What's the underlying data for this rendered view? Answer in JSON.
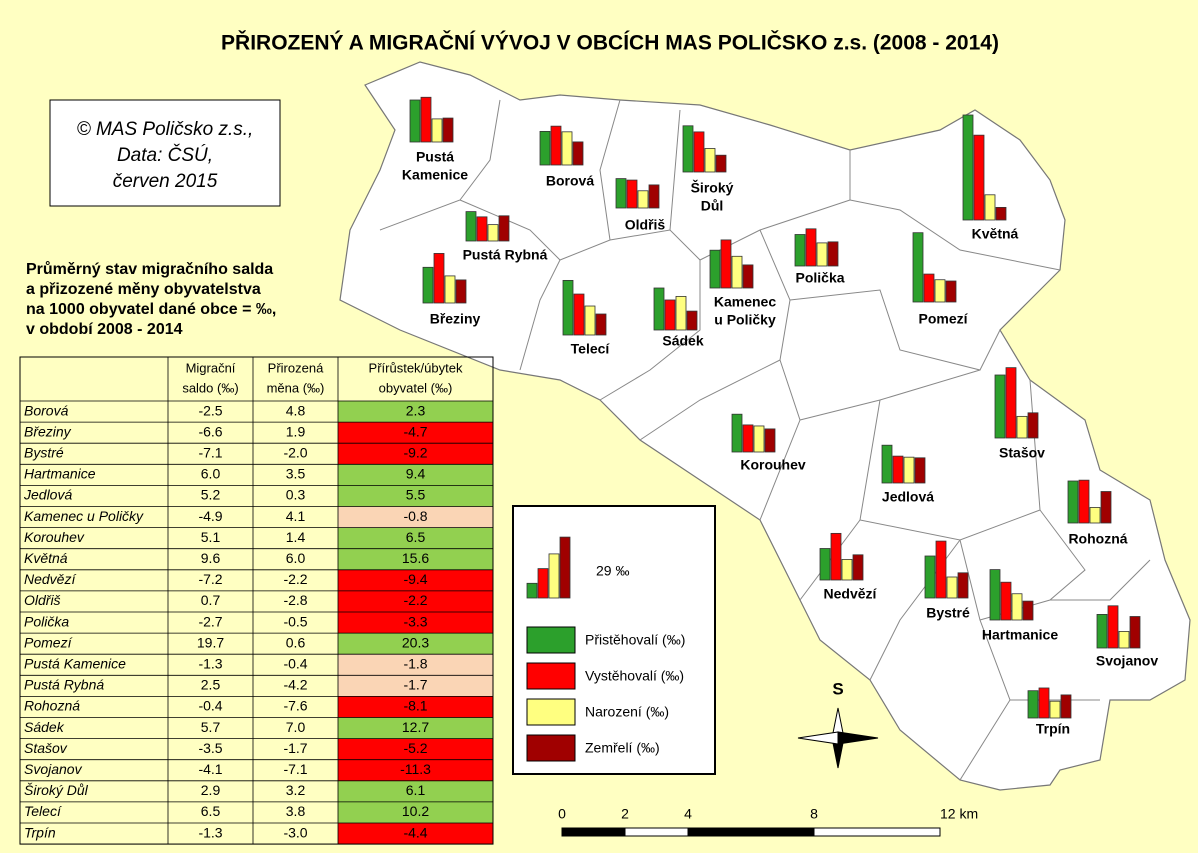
{
  "title": "PŘIROZENÝ A MIGRAČNÍ VÝVOJ V OBCÍCH MAS POLIČSKO z.s. (2008 - 2014)",
  "credit": [
    "© MAS Poličsko z.s.,",
    "Data: ČSÚ,",
    "červen 2015"
  ],
  "subtitle": [
    "Průměrný stav migračního salda",
    "a přizozené měny obyvatelstva",
    "na 1000 obyvatel dané obce = ‰,",
    "v období 2008 - 2014"
  ],
  "table": {
    "headers": [
      [],
      [
        "Migrační",
        "saldo (‰)"
      ],
      [
        "Přirozená",
        "měna (‰)"
      ],
      [
        "Přírůstek/úbytek",
        "obyvatel (‰)"
      ]
    ],
    "rows": [
      {
        "cells": [
          "Borová",
          "-2.5",
          "4.8",
          "2.3"
        ],
        "color": "#92d050"
      },
      {
        "cells": [
          "Březiny",
          "-6.6",
          "1.9",
          "-4.7"
        ],
        "color": "#ff0000"
      },
      {
        "cells": [
          "Bystré",
          "-7.1",
          "-2.0",
          "-9.2"
        ],
        "color": "#ff0000"
      },
      {
        "cells": [
          "Hartmanice",
          "6.0",
          "3.5",
          "9.4"
        ],
        "color": "#92d050"
      },
      {
        "cells": [
          "Jedlová",
          "5.2",
          "0.3",
          "5.5"
        ],
        "color": "#92d050"
      },
      {
        "cells": [
          "Kamenec u Poličky",
          "-4.9",
          "4.1",
          "-0.8"
        ],
        "color": "#fad5b5"
      },
      {
        "cells": [
          "Korouhev",
          "5.1",
          "1.4",
          "6.5"
        ],
        "color": "#92d050"
      },
      {
        "cells": [
          "Květná",
          "9.6",
          "6.0",
          "15.6"
        ],
        "color": "#92d050"
      },
      {
        "cells": [
          "Nedvězí",
          "-7.2",
          "-2.2",
          "-9.4"
        ],
        "color": "#ff0000"
      },
      {
        "cells": [
          "Oldřiš",
          "0.7",
          "-2.8",
          "-2.2"
        ],
        "color": "#ff0000"
      },
      {
        "cells": [
          "Polička",
          "-2.7",
          "-0.5",
          "-3.3"
        ],
        "color": "#ff0000"
      },
      {
        "cells": [
          "Pomezí",
          "19.7",
          "0.6",
          "20.3"
        ],
        "color": "#92d050"
      },
      {
        "cells": [
          "Pustá Kamenice",
          "-1.3",
          "-0.4",
          "-1.8"
        ],
        "color": "#fad5b5"
      },
      {
        "cells": [
          "Pustá Rybná",
          "2.5",
          "-4.2",
          "-1.7"
        ],
        "color": "#fad5b5"
      },
      {
        "cells": [
          "Rohozná",
          "-0.4",
          "-7.6",
          "-8.1"
        ],
        "color": "#ff0000"
      },
      {
        "cells": [
          "Sádek",
          "5.7",
          "7.0",
          "12.7"
        ],
        "color": "#92d050"
      },
      {
        "cells": [
          "Stašov",
          "-3.5",
          "-1.7",
          "-5.2"
        ],
        "color": "#ff0000"
      },
      {
        "cells": [
          "Svojanov",
          "-4.1",
          "-7.1",
          "-11.3"
        ],
        "color": "#ff0000"
      },
      {
        "cells": [
          "Široký Důl",
          "2.9",
          "3.2",
          "6.1"
        ],
        "color": "#92d050"
      },
      {
        "cells": [
          "Telecí",
          "6.5",
          "3.8",
          "10.2"
        ],
        "color": "#92d050"
      },
      {
        "cells": [
          "Trpín",
          "-1.3",
          "-3.0",
          "-4.4"
        ],
        "color": "#ff0000"
      }
    ]
  },
  "towns": [
    {
      "label": [
        "Pustá",
        "Kamenice"
      ],
      "values": [
        20,
        21.3,
        11,
        11.4
      ]
    },
    {
      "label": [
        "Borová"
      ],
      "values": [
        16,
        18.5,
        15.8,
        11
      ]
    },
    {
      "label": [
        "Široký",
        "Důl"
      ],
      "values": [
        22,
        19.1,
        11.2,
        8
      ]
    },
    {
      "label": [
        "Oldřiš"
      ],
      "values": [
        14,
        13.3,
        8.2,
        11
      ]
    },
    {
      "label": [
        "Květná"
      ],
      "values": [
        50,
        40.4,
        12,
        6
      ]
    },
    {
      "label": [
        "Pustá Rybná"
      ],
      "values": [
        14,
        11.5,
        7.8,
        12
      ]
    },
    {
      "label": [
        "Polička"
      ],
      "values": [
        15,
        17.7,
        11,
        11.5
      ]
    },
    {
      "label": [
        "Březiny"
      ],
      "values": [
        17,
        23.6,
        12.9,
        11
      ]
    },
    {
      "label": [
        "Pomezí"
      ],
      "values": [
        33,
        13.3,
        10.6,
        10
      ]
    },
    {
      "label": [
        "Kamenec",
        "u Poličky"
      ],
      "values": [
        18,
        22.9,
        15.1,
        11
      ]
    },
    {
      "label": [
        "Telecí"
      ],
      "values": [
        26,
        19.5,
        13.8,
        10
      ]
    },
    {
      "label": [
        "Sádek"
      ],
      "values": [
        20,
        14.3,
        16,
        9
      ]
    },
    {
      "label": [
        "Stašov"
      ],
      "values": [
        30,
        33.5,
        10.3,
        12
      ]
    },
    {
      "label": [
        "Korouhev"
      ],
      "values": [
        18,
        12.9,
        12.4,
        11
      ]
    },
    {
      "label": [
        "Jedlová"
      ],
      "values": [
        18,
        12.8,
        12.3,
        12
      ]
    },
    {
      "label": [
        "Rohozná"
      ],
      "values": [
        20,
        20.4,
        7.4,
        15
      ]
    },
    {
      "label": [
        "Nedvězí"
      ],
      "values": [
        15,
        22.2,
        9.8,
        12
      ]
    },
    {
      "label": [
        "Bystré"
      ],
      "values": [
        20,
        27.1,
        10,
        12
      ]
    },
    {
      "label": [
        "Hartmanice"
      ],
      "values": [
        24,
        18,
        12.5,
        9
      ]
    },
    {
      "label": [
        "Svojanov"
      ],
      "values": [
        16,
        20.1,
        7.9,
        15
      ]
    },
    {
      "label": [
        "Trpín"
      ],
      "values": [
        13,
        14.3,
        8,
        11
      ]
    }
  ],
  "legend": {
    "sample": [
      7,
      14,
      21,
      29
    ],
    "sample_label": "29 ‰",
    "items": [
      {
        "name": "Přistěhovalí (‰)",
        "color": "#2ca02c"
      },
      {
        "name": "Vystěhovalí (‰)",
        "color": "#ff0000"
      },
      {
        "name": "Narození (‰)",
        "color": "#ffff80"
      },
      {
        "name": "Zemřelí (‰)",
        "color": "#a00000"
      }
    ]
  },
  "north": "S",
  "scale": {
    "ticks": [
      0,
      2,
      4,
      8,
      {
        "value": 12,
        "label": "12 km"
      }
    ]
  }
}
